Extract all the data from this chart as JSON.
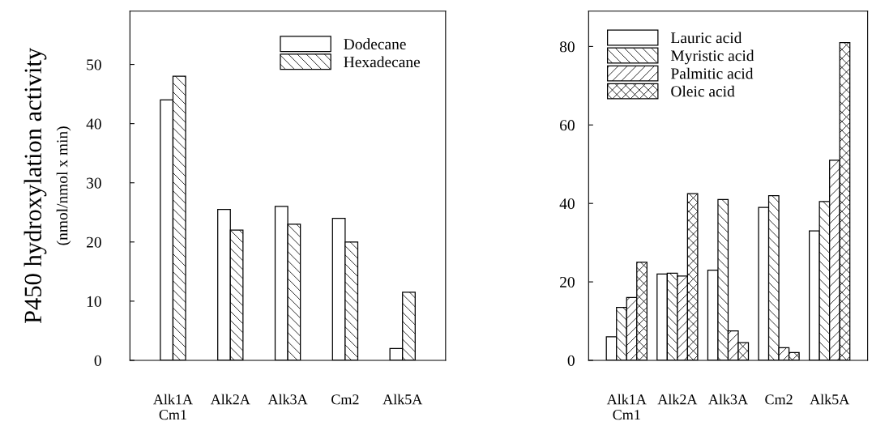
{
  "chart_data": [
    {
      "type": "bar",
      "ylabel": "P450 hydroxylation activity\n(nmol/nmol x min)",
      "categories": [
        "Alk1A\nCm1",
        "Alk2A",
        "Alk3A",
        "Cm2",
        "Alk5A"
      ],
      "series": [
        {
          "name": "Dodecane",
          "values": [
            44,
            25.5,
            26,
            24,
            2
          ]
        },
        {
          "name": "Hexadecane",
          "values": [
            48,
            22,
            23,
            20,
            11.5
          ]
        }
      ],
      "ylim": [
        0,
        59
      ],
      "yticks": [
        0,
        10,
        20,
        30,
        40,
        50
      ],
      "grid": false,
      "legend": "top right"
    },
    {
      "type": "bar",
      "categories": [
        "Alk1A\nCm1",
        "Alk2A",
        "Alk3A",
        "Cm2",
        "Alk5A"
      ],
      "series": [
        {
          "name": "Lauric acid",
          "values": [
            6,
            22,
            23,
            39,
            33
          ]
        },
        {
          "name": "Myristic acid",
          "values": [
            13.5,
            22.2,
            41,
            42,
            40.5
          ]
        },
        {
          "name": "Palmitic acid",
          "values": [
            16,
            21.5,
            7.5,
            3.2,
            51
          ]
        },
        {
          "name": "Oleic acid",
          "values": [
            25,
            42.5,
            4.5,
            2,
            81
          ]
        }
      ],
      "ylim": [
        0,
        89
      ],
      "yticks": [
        0,
        20,
        40,
        60,
        80
      ],
      "grid": false,
      "legend": "top left"
    }
  ]
}
